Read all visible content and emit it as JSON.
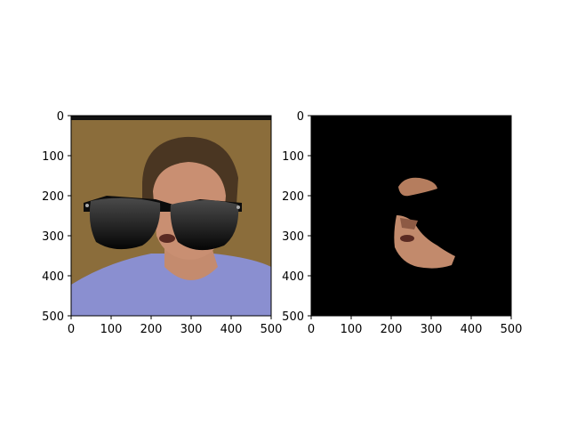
{
  "figure": {
    "panels": [
      {
        "name": "left",
        "description_icon": "photo-with-sunglasses",
        "xticks": [
          "0",
          "100",
          "200",
          "300",
          "400",
          "500"
        ],
        "yticks": [
          "0",
          "100",
          "200",
          "300",
          "400",
          "500"
        ]
      },
      {
        "name": "right",
        "description_icon": "segmented-face-mask",
        "xticks": [
          "0",
          "100",
          "200",
          "300",
          "400",
          "500"
        ],
        "yticks": [
          "0",
          "100",
          "200",
          "300",
          "400",
          "500"
        ]
      }
    ]
  },
  "colors": {
    "background_wall": "#8b6d3b",
    "shirt": "#8a8fd0",
    "skin": "#c98f72",
    "hair": "#4a3622",
    "lens_top": "#3a3a3a",
    "lens_bottom": "#070707",
    "mask_bg": "#000000"
  }
}
